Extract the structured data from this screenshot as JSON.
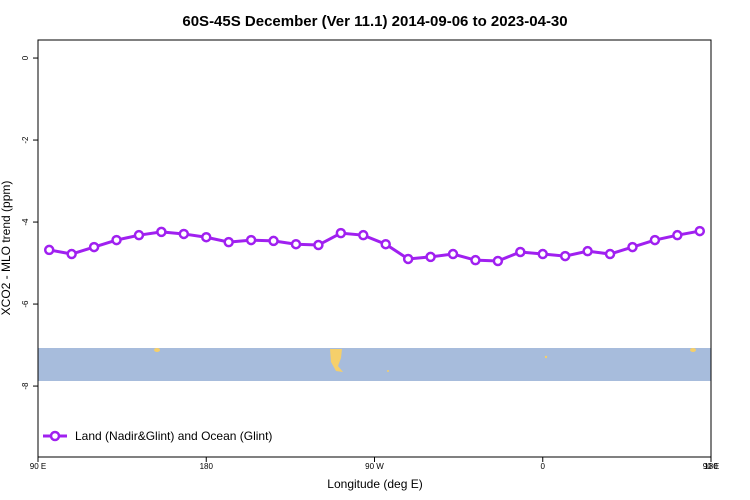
{
  "chart_data": {
    "type": "line",
    "title": "60S-45S December (Ver 11.1)   2014-09-06 to 2023-04-30",
    "xlabel": "Longitude (deg E)",
    "ylabel": "XCO2 - MLO trend (ppm)",
    "x": [
      96,
      108,
      120,
      132,
      144,
      156,
      168,
      180,
      192,
      204,
      216,
      228,
      240,
      252,
      264,
      276,
      288,
      300,
      312,
      324,
      336,
      348,
      360,
      372,
      384,
      396,
      408,
      420,
      432,
      444
    ],
    "series": [
      {
        "name": "Land (Nadir&Glint) and Ocean (Glint)",
        "color": "#a020f0",
        "values": [
          -4.68,
          -4.78,
          -4.61,
          -4.44,
          -4.32,
          -4.24,
          -4.29,
          -4.37,
          -4.49,
          -4.44,
          -4.46,
          -4.54,
          -4.56,
          -4.27,
          -4.32,
          -4.54,
          -4.9,
          -4.85,
          -4.78,
          -4.93,
          -4.95,
          -4.73,
          -4.78,
          -4.83,
          -4.71,
          -4.78,
          -4.61,
          -4.44,
          -4.32,
          -4.22
        ]
      }
    ],
    "xlim": [
      90,
      450
    ],
    "xticks": [
      {
        "value": 90,
        "label": "90 E"
      },
      180,
      {
        "value": 270,
        "label": "90 W"
      },
      {
        "value": 360,
        "label": "0"
      },
      {
        "value": 450,
        "label": "90 E"
      },
      {
        "value": 540,
        "label": "180"
      }
    ],
    "ylim": [
      -9.73,
      0.44
    ],
    "yticks": [
      0,
      -2,
      -4,
      -6,
      -8
    ],
    "legend": "bottom-left"
  }
}
